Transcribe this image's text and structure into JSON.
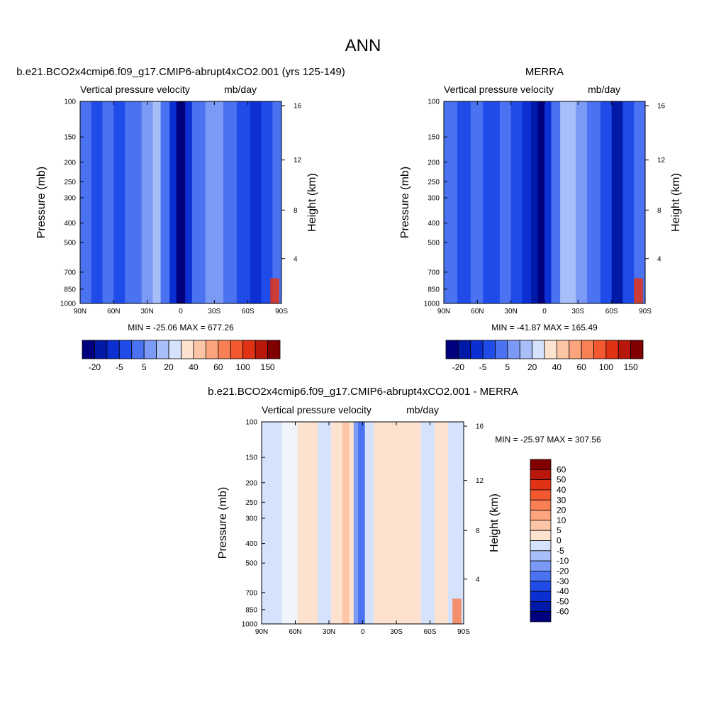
{
  "figure_title": "ANN",
  "colors": {
    "blue_scale": [
      "#00007f",
      "#0019a6",
      "#0b2fd2",
      "#1f4be8",
      "#4a72f1",
      "#7b9af5",
      "#a7bef8",
      "#d4e2fb"
    ],
    "red_scale": [
      "#fde3cf",
      "#fcc6a6",
      "#fba47d",
      "#f98055",
      "#f4582f",
      "#e23216",
      "#b8170b",
      "#800000"
    ],
    "zero": "#eef3fb"
  },
  "chart_data": [
    {
      "type": "heatmap",
      "title": "b.e21.BCO2x4cmip6.f09_g17.CMIP6-abrupt4xCO2.001 (yrs 125-149)",
      "left_string": "Vertical pressure velocity",
      "right_string": "mb/day",
      "ylabel": "Pressure (mb)",
      "y2label": "Height (km)",
      "y_ticks": [
        "100",
        "150",
        "200",
        "250",
        "300",
        "400",
        "500",
        "700",
        "850",
        "1000"
      ],
      "y_range": [
        1000,
        100
      ],
      "y_scale": "log",
      "y2_ticks": [
        "4",
        "8",
        "12",
        "16"
      ],
      "x_ticks": [
        "90N",
        "60N",
        "30N",
        "0",
        "30S",
        "60S",
        "90S"
      ],
      "x_range": [
        90,
        -90
      ],
      "min_max": "MIN = -25.06  MAX = 677.26",
      "colorbar": {
        "orientation": "horizontal",
        "labels": [
          "-20",
          "-5",
          "5",
          "20",
          "40",
          "60",
          "100",
          "150"
        ]
      }
    },
    {
      "type": "heatmap",
      "title": "MERRA",
      "left_string": "Vertical pressure velocity",
      "right_string": "mb/day",
      "ylabel": "Pressure (mb)",
      "y2label": "Height (km)",
      "y_ticks": [
        "100",
        "150",
        "200",
        "250",
        "300",
        "400",
        "500",
        "700",
        "850",
        "1000"
      ],
      "y_range": [
        1000,
        100
      ],
      "y_scale": "log",
      "y2_ticks": [
        "4",
        "8",
        "12",
        "16"
      ],
      "x_ticks": [
        "90N",
        "60N",
        "30N",
        "0",
        "30S",
        "60S",
        "90S"
      ],
      "x_range": [
        90,
        -90
      ],
      "min_max": "MIN = -41.87  MAX = 165.49",
      "colorbar": {
        "orientation": "horizontal",
        "labels": [
          "-20",
          "-5",
          "5",
          "20",
          "40",
          "60",
          "100",
          "150"
        ]
      }
    },
    {
      "type": "heatmap",
      "title": "b.e21.BCO2x4cmip6.f09_g17.CMIP6-abrupt4xCO2.001 - MERRA",
      "left_string": "Vertical pressure velocity",
      "right_string": "mb/day",
      "ylabel": "Pressure (mb)",
      "y2label": "Height (km)",
      "y_ticks": [
        "100",
        "150",
        "200",
        "250",
        "300",
        "400",
        "500",
        "700",
        "850",
        "1000"
      ],
      "y_range": [
        1000,
        100
      ],
      "y_scale": "log",
      "y2_ticks": [
        "4",
        "8",
        "12",
        "16"
      ],
      "x_ticks": [
        "90N",
        "60N",
        "30N",
        "0",
        "30S",
        "60S",
        "90S"
      ],
      "x_range": [
        90,
        -90
      ],
      "min_max": "MIN = -25.97  MAX = 307.56",
      "colorbar": {
        "orientation": "vertical",
        "labels": [
          "60",
          "50",
          "40",
          "30",
          "20",
          "10",
          "5",
          "0",
          "-5",
          "-10",
          "-20",
          "-30",
          "-40",
          "-50",
          "-60"
        ]
      }
    }
  ]
}
